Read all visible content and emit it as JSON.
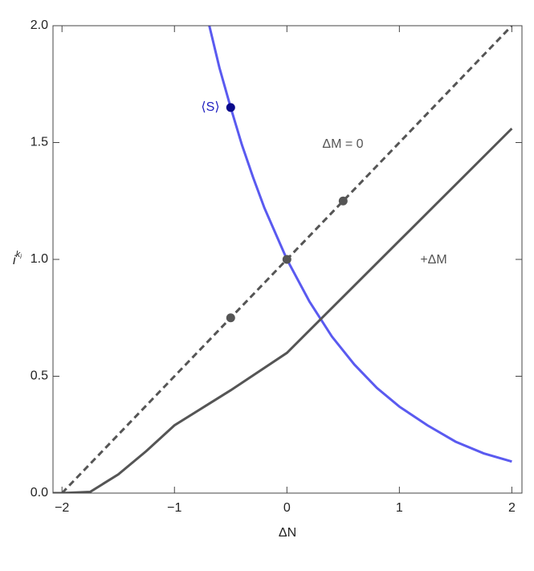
{
  "chart_data": {
    "type": "line",
    "x_label": "ΔN",
    "y_label": "i",
    "y_label_sup": "k",
    "y_label_sub": "i",
    "xlim": [
      -2.08,
      2.09
    ],
    "ylim": [
      0,
      2
    ],
    "xticks": [
      {
        "value": -2,
        "label": "−2"
      },
      {
        "value": -1,
        "label": "−1"
      },
      0,
      1,
      2
    ],
    "yticks": [
      {
        "value": 0,
        "label": "0.0"
      },
      {
        "value": 0.5,
        "label": "0.5"
      },
      {
        "value": 1,
        "label": "1.0"
      },
      {
        "value": 1.5,
        "label": "1.5"
      },
      {
        "value": 2,
        "label": "2.0"
      }
    ],
    "series": [
      {
        "color": "#5a5af0",
        "dashed": false,
        "x": [
          -0.69,
          -0.6,
          -0.5,
          -0.4,
          -0.3,
          -0.2,
          -0.1,
          0,
          0.2,
          0.4,
          0.6,
          0.8,
          1,
          1.25,
          1.5,
          1.75,
          2
        ],
        "values": [
          2,
          1.82,
          1.65,
          1.49,
          1.35,
          1.22,
          1.11,
          1,
          0.82,
          0.67,
          0.55,
          0.45,
          0.37,
          0.29,
          0.22,
          0.17,
          0.135
        ]
      },
      {
        "color": "#555555",
        "dashed": true,
        "x": [
          -2,
          2
        ],
        "values": [
          0,
          2
        ]
      },
      {
        "color": "#555555",
        "dashed": false,
        "x": [
          -2.08,
          -2,
          -1.75,
          -1.5,
          -1.25,
          -1,
          -0.5,
          0,
          0.5,
          1,
          1.5,
          2
        ],
        "values": [
          0,
          0,
          0.005,
          0.08,
          0.18,
          0.29,
          0.44,
          0.6,
          0.84,
          1.08,
          1.32,
          1.56
        ]
      }
    ],
    "points": [
      {
        "color": "#555555",
        "x": [
          -0.5,
          0,
          0.5
        ],
        "values": [
          0.75,
          1,
          1.25
        ]
      },
      {
        "color": "#0a0a8c",
        "x": [
          -0.5
        ],
        "values": [
          1.65
        ]
      }
    ],
    "annotations": [
      {
        "text": "⟨S⟩",
        "color": "#2020c0"
      },
      {
        "text": "ΔM = 0",
        "color": "#555555"
      },
      {
        "text": "+ΔM",
        "color": "#555555"
      }
    ]
  }
}
